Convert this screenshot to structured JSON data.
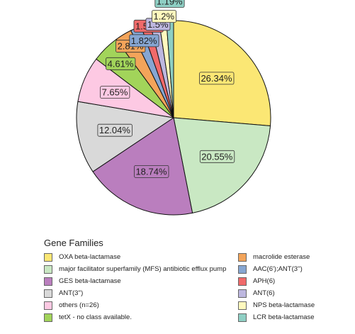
{
  "chart_data": {
    "type": "pie",
    "title": "",
    "legend": {
      "title": "Gene Families",
      "placement": "bottom"
    },
    "slices": [
      {
        "name": "OXA beta-lactamase",
        "value": 26.34,
        "label": "26.34%",
        "color": "#FBE774"
      },
      {
        "name": "major facilitator superfamily (MFS) antibiotic efflux pump",
        "value": 20.55,
        "label": "20.55%",
        "color": "#C9E8C3"
      },
      {
        "name": "GES beta-lactamase",
        "value": 18.74,
        "label": "18.74%",
        "color": "#BA7EBE"
      },
      {
        "name": "ANT(3'')",
        "value": 12.04,
        "label": "12.04%",
        "color": "#D9D9D9"
      },
      {
        "name": "others (n=26)",
        "value": 7.65,
        "label": "7.65%",
        "color": "#FDC9E3"
      },
      {
        "name": "tetX - no class available.",
        "value": 4.61,
        "label": "4.61%",
        "color": "#A2D45A"
      },
      {
        "name": "macrolide esterase",
        "value": 2.81,
        "label": "2.81%",
        "color": "#F3A45A"
      },
      {
        "name": "AAC(6');ANT(3'')",
        "value": 1.82,
        "label": "1.82%",
        "color": "#86A6D2"
      },
      {
        "name": "APH(6)",
        "value": 1.55,
        "label": "1.55%",
        "color": "#F06A6A"
      },
      {
        "name": "ANT(6)",
        "value": 1.5,
        "label": "1.5%",
        "color": "#BDB7DF"
      },
      {
        "name": "NPS beta-lactamase",
        "value": 1.2,
        "label": "1.2%",
        "color": "#FFF9BE"
      },
      {
        "name": "LCR beta-lactamase",
        "value": 1.19,
        "label": "1.19%",
        "color": "#8ECFC4"
      }
    ]
  }
}
